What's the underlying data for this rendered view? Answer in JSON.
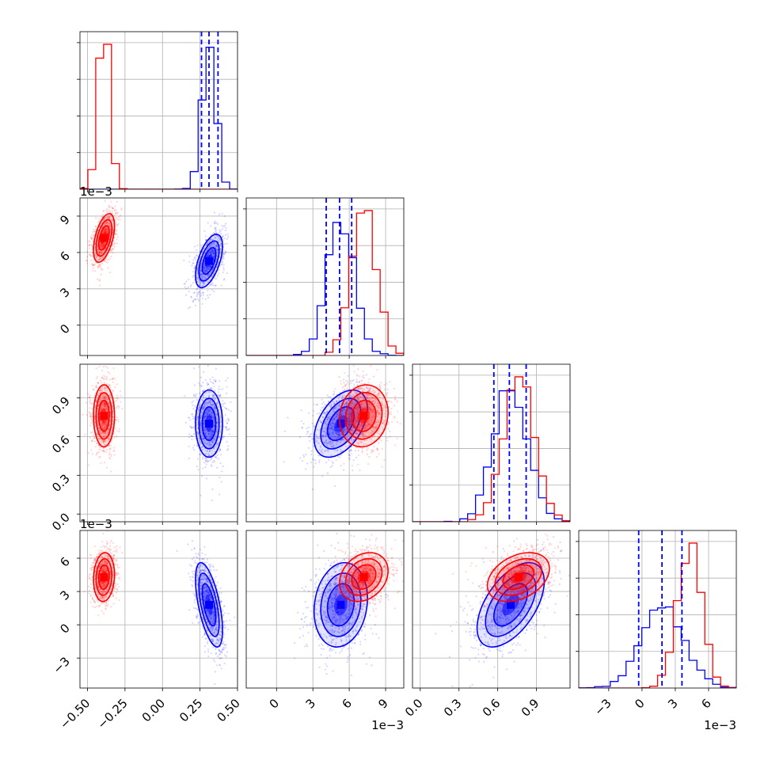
{
  "colors": {
    "series_a": "#0000ff",
    "series_b": "#ff0000",
    "grid": "#b0b0b0"
  },
  "chart_data": {
    "type": "corner",
    "grid": true,
    "parameters": [
      {
        "range": [
          -0.55,
          0.5
        ],
        "ticks": [
          -0.5,
          -0.25,
          0.0,
          0.25,
          0.5
        ],
        "tick_labels": [
          "−0.50",
          "−0.25",
          "0.00",
          "0.25",
          "0.50"
        ],
        "scale_label": ""
      },
      {
        "range": [
          -0.0025,
          0.0105
        ],
        "ticks": [
          0,
          0.003,
          0.006,
          0.009
        ],
        "tick_labels": [
          "0",
          "3",
          "6",
          "9"
        ],
        "scale_label": "1e−3"
      },
      {
        "range": [
          -0.06,
          1.16
        ],
        "ticks": [
          0.0,
          0.3,
          0.6,
          0.9
        ],
        "tick_labels": [
          "0.0",
          "0.3",
          "0.6",
          "0.9"
        ],
        "scale_label": ""
      },
      {
        "range": [
          -0.0057,
          0.0085
        ],
        "ticks": [
          -0.003,
          0,
          0.003,
          0.006
        ],
        "tick_labels": [
          "−3",
          "0",
          "3",
          "6"
        ],
        "scale_label": "1e−3"
      }
    ],
    "series": [
      {
        "color": "#0000ff",
        "mean": [
          0.31,
          0.0053,
          0.7,
          0.0018
        ],
        "std": [
          0.045,
          0.0011,
          0.13,
          0.0019
        ],
        "quantiles": [
          [
            0.26,
            0.31,
            0.37
          ],
          [
            0.0041,
            0.0052,
            0.0062
          ],
          [
            0.57,
            0.69,
            0.82
          ],
          [
            -0.0003,
            0.0018,
            0.0036
          ]
        ]
      },
      {
        "color": "#ff0000",
        "mean": [
          -0.39,
          0.0072,
          0.76,
          0.0043
        ],
        "std": [
          0.035,
          0.001,
          0.12,
          0.0011
        ],
        "quantiles": []
      }
    ]
  }
}
